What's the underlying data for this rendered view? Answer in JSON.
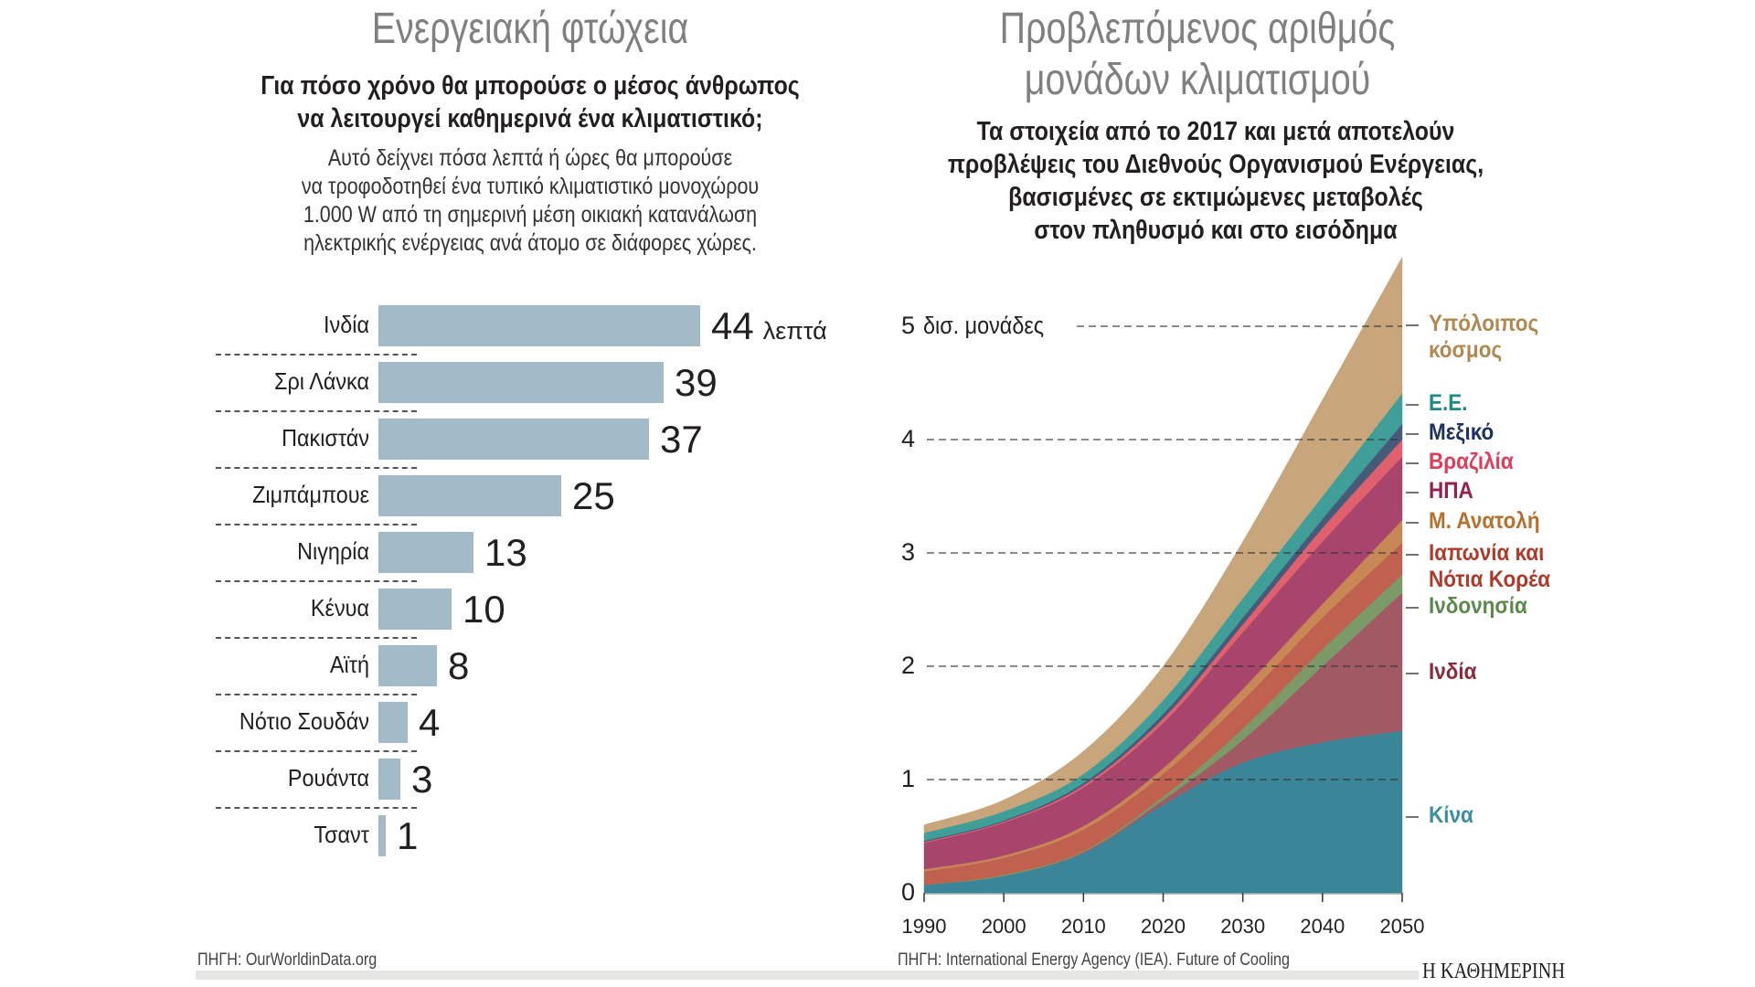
{
  "left": {
    "title": "Ενεργειακή φτώχεια",
    "subtitle_lines": [
      "Για πόσο χρόνο θα μπορούσε ο μέσος άνθρωπος",
      "να λειτουργεί καθημερινά ένα κλιματιστικό;"
    ],
    "description_lines": [
      "Αυτό δείχνει πόσα λεπτά ή ώρες θα μπορούσε",
      "να τροφοδοτηθεί ένα τυπικό κλιματιστικό μονοχώρου",
      "1.000 W από τη σημερινή μέση οικιακή κατανάλωση",
      "ηλεκτρικής ενέργειας ανά άτομο σε διάφορες χώρες."
    ],
    "source": "ΠΗΓΗ: OurWorldinData.org"
  },
  "right": {
    "title_lines": [
      "Προβλεπόμενος αριθμός",
      "μονάδων κλιματισμού"
    ],
    "subtitle_lines": [
      "Τα στοιχεία από το 2017 και μετά αποτελούν",
      "προβλέψεις του Διεθνούς Οργανισμού Ενέργειας,",
      "βασισμένες σε εκτιμώμενες μεταβολές",
      "στον πληθυσμό και στο εισόδημα"
    ],
    "source": "ΠΗΓΗ: International Energy Agency (IEA). Future of Cooling"
  },
  "logo": "Η ΚΑΘΗΜΕΡΙΝΗ",
  "chart_data": [
    {
      "type": "bar",
      "orientation": "horizontal",
      "title": "Ενεργειακή φτώχεια",
      "categories": [
        "Ινδία",
        "Σρι Λάνκα",
        "Πακιστάν",
        "Ζιμπάμπουε",
        "Νιγηρία",
        "Κένυα",
        "Αϊτή",
        "Νότιο Σουδάν",
        "Ρουάντα",
        "Τσαντ"
      ],
      "values": [
        44,
        39,
        37,
        25,
        13,
        10,
        8,
        4,
        3,
        1
      ],
      "value_labels": [
        "44",
        "39",
        "37",
        "25",
        "13",
        "10",
        "8",
        "4",
        "3",
        "1"
      ],
      "unit_label": "λεπτά",
      "xlim": [
        0,
        44
      ],
      "color": "#a3bbc8"
    },
    {
      "type": "area",
      "stacked": true,
      "title": "Προβλεπόμενος αριθμός μονάδων κλιματισμού",
      "x": [
        1990,
        2000,
        2010,
        2020,
        2030,
        2040,
        2050
      ],
      "xticks": [
        "1990",
        "2000",
        "2010",
        "2020",
        "2030",
        "2040",
        "2050"
      ],
      "ylim": [
        0,
        5.6
      ],
      "yticks": [
        0,
        1,
        2,
        3,
        4,
        5
      ],
      "ytick_labels": [
        "0",
        "1",
        "2",
        "3",
        "4",
        "5"
      ],
      "ylabel": "δισ. μονάδες",
      "grid": "dashed",
      "series": [
        {
          "name": "Κίνα",
          "color": "#3a8598",
          "label_color": "#3a8fa3",
          "values": [
            0.07,
            0.15,
            0.35,
            0.78,
            1.15,
            1.33,
            1.43
          ]
        },
        {
          "name": "Ινδία",
          "color": "#a15a63",
          "label_color": "#8c2a3a",
          "values": [
            0.0,
            0.0,
            0.01,
            0.04,
            0.2,
            0.67,
            1.22
          ]
        },
        {
          "name": "Ινδονησία",
          "color": "#7b9a68",
          "label_color": "#5a8a4a",
          "values": [
            0.0,
            0.01,
            0.01,
            0.03,
            0.1,
            0.15,
            0.16
          ]
        },
        {
          "name": "Ιαπωνία και Νότια Κορέα",
          "color": "#c0604e",
          "label_color": "#b03a2a",
          "values": [
            0.12,
            0.15,
            0.19,
            0.2,
            0.25,
            0.28,
            0.28
          ]
        },
        {
          "name": "Μ. Ανατολή",
          "color": "#c88856",
          "label_color": "#b8702e",
          "values": [
            0.02,
            0.02,
            0.03,
            0.05,
            0.1,
            0.12,
            0.2
          ]
        },
        {
          "name": "ΗΠΑ",
          "color": "#a8456c",
          "label_color": "#95204a",
          "values": [
            0.23,
            0.29,
            0.34,
            0.4,
            0.5,
            0.55,
            0.56
          ]
        },
        {
          "name": "Βραζιλία",
          "color": "#e0606e",
          "label_color": "#e03c5a",
          "values": [
            0.01,
            0.01,
            0.02,
            0.04,
            0.07,
            0.12,
            0.15
          ]
        },
        {
          "name": "Μεξικό",
          "color": "#465a7a",
          "label_color": "#1e3160",
          "values": [
            0.01,
            0.01,
            0.02,
            0.04,
            0.06,
            0.08,
            0.14
          ]
        },
        {
          "name": "Ε.Ε.",
          "color": "#3f9e98",
          "label_color": "#1e8a84",
          "values": [
            0.07,
            0.08,
            0.08,
            0.12,
            0.17,
            0.2,
            0.27
          ]
        },
        {
          "name": "Υπόλοιπος κόσμος",
          "color": "#c8a57a",
          "label_color": "#b08850",
          "values": [
            0.07,
            0.1,
            0.2,
            0.3,
            0.5,
            0.85,
            1.2
          ]
        }
      ]
    }
  ]
}
